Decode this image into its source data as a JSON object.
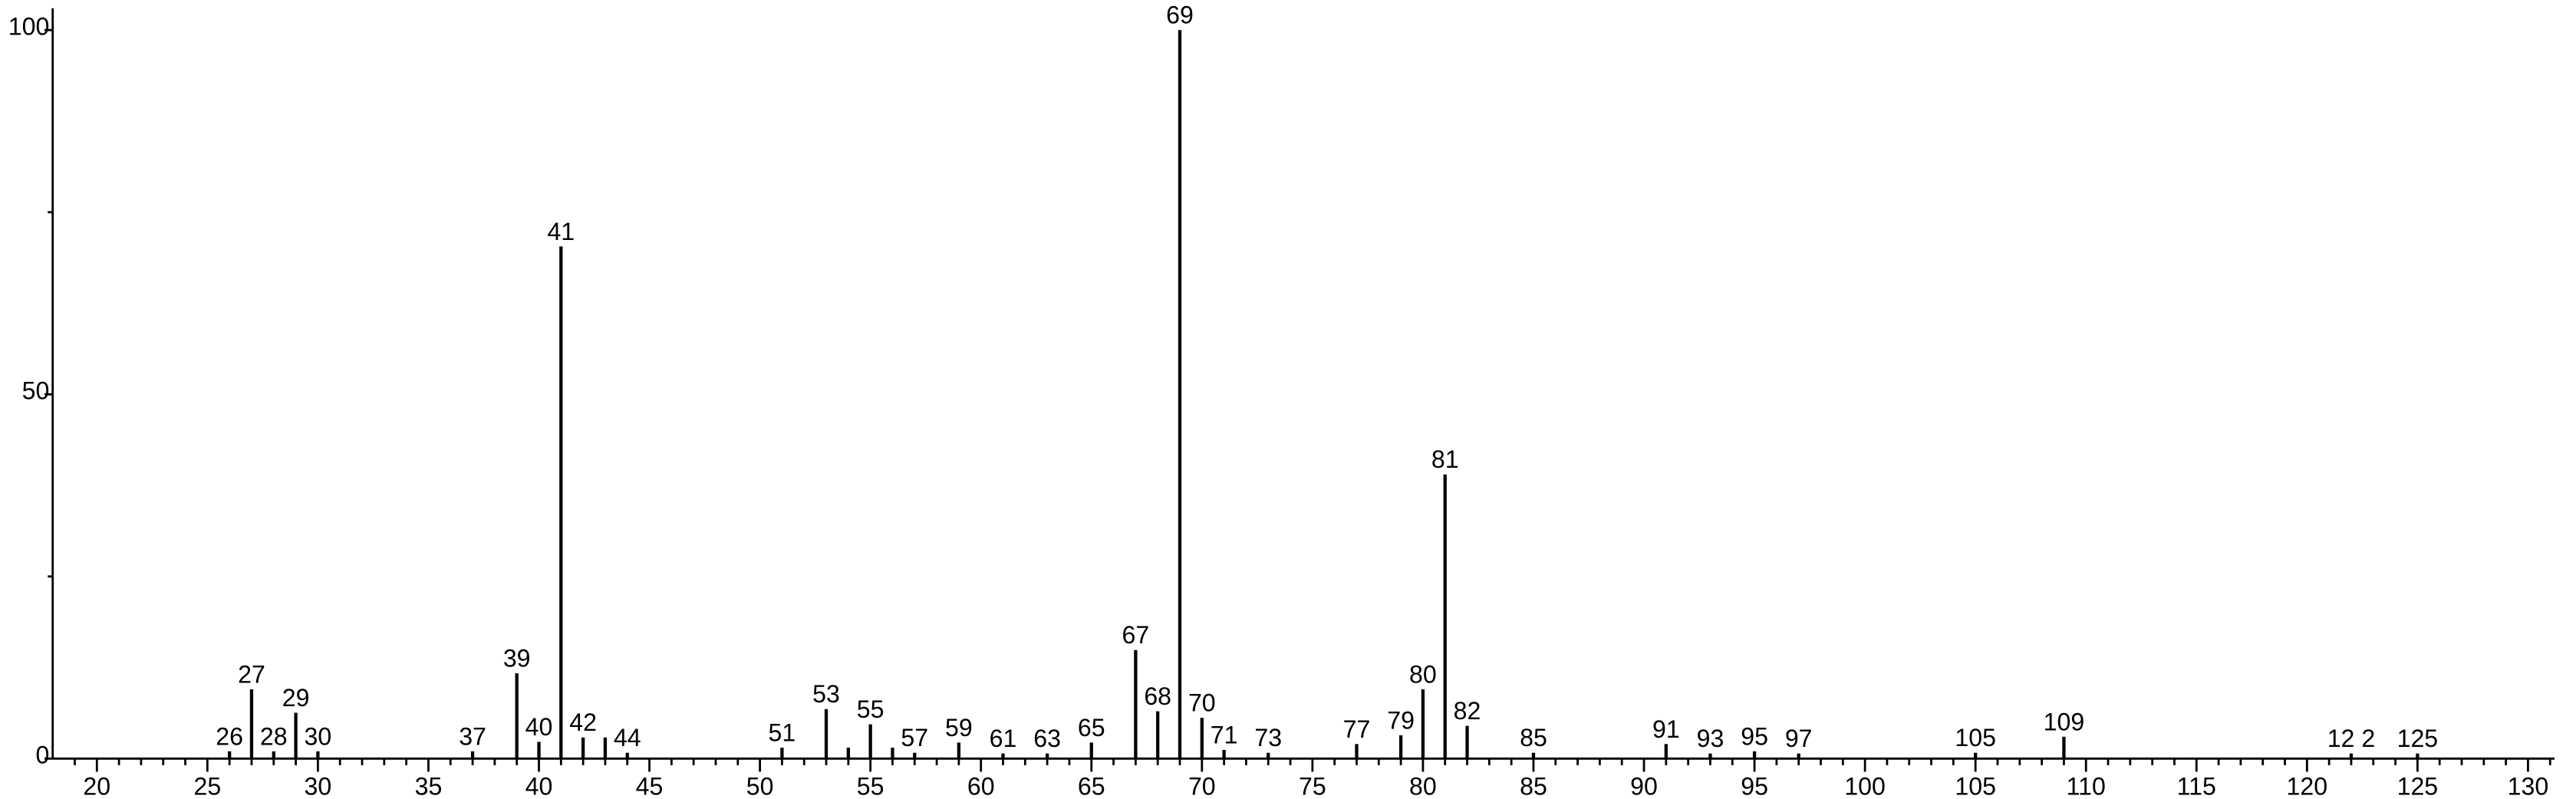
{
  "chart_data": {
    "type": "stick",
    "x": [
      26,
      27,
      28,
      29,
      30,
      37,
      39,
      40,
      41,
      42,
      43,
      44,
      51,
      53,
      54,
      55,
      56,
      57,
      59,
      61,
      63,
      65,
      67,
      68,
      69,
      70,
      71,
      73,
      77,
      79,
      80,
      81,
      82,
      85,
      91,
      93,
      95,
      97,
      105,
      109,
      122,
      125
    ],
    "values": [
      1,
      9.5,
      1,
      6.3,
      1,
      1,
      11.7,
      2.3,
      70.3,
      2.9,
      2.9,
      0.8,
      1.5,
      6.8,
      1.5,
      4.7,
      1.5,
      0.8,
      2.2,
      0.7,
      0.7,
      2.2,
      14.9,
      6.5,
      100,
      5.6,
      1.2,
      0.8,
      2.0,
      3.2,
      9.5,
      39,
      4.5,
      0.8,
      2.0,
      0.7,
      1.0,
      0.7,
      0.8,
      3.0,
      0.7,
      0.7
    ],
    "peak_labels": [
      "26",
      "27",
      "28",
      "29",
      "30",
      "37",
      "39",
      "40",
      "41",
      "42",
      null,
      "44",
      "51",
      "53",
      null,
      "55",
      null,
      "57",
      "59",
      "61",
      "63",
      "65",
      "67",
      "68",
      "69",
      "70",
      "71",
      "73",
      "77",
      "79",
      "80",
      "81",
      "82",
      "85",
      "91",
      "93",
      "95",
      "97",
      "105",
      "109",
      "12 2",
      "125"
    ],
    "color": "#000000",
    "xlim": [
      18,
      131.2
    ],
    "xticks": [
      20,
      25,
      30,
      35,
      40,
      45,
      50,
      55,
      60,
      65,
      70,
      75,
      80,
      85,
      90,
      95,
      100,
      105,
      110,
      115,
      120,
      125,
      130
    ],
    "xminorticks": [
      19,
      21,
      22,
      23,
      24,
      26,
      27,
      28,
      29,
      31,
      32,
      33,
      34,
      36,
      37,
      38,
      39,
      41,
      42,
      43,
      44,
      46,
      47,
      48,
      49,
      51,
      52,
      53,
      54,
      56,
      57,
      58,
      59,
      61,
      62,
      63,
      64,
      66,
      67,
      68,
      69,
      71,
      72,
      73,
      74,
      76,
      77,
      78,
      79,
      81,
      82,
      83,
      84,
      86,
      87,
      88,
      89,
      91,
      92,
      93,
      94,
      96,
      97,
      98,
      99,
      101,
      102,
      103,
      104,
      106,
      107,
      108,
      109,
      111,
      112,
      113,
      114,
      116,
      117,
      118,
      119,
      121,
      122,
      123,
      124,
      126,
      127,
      128,
      129,
      131
    ],
    "ylim": [
      0,
      103
    ],
    "yticks": [
      0,
      50,
      100
    ],
    "yminorticks": [
      25,
      75
    ]
  }
}
